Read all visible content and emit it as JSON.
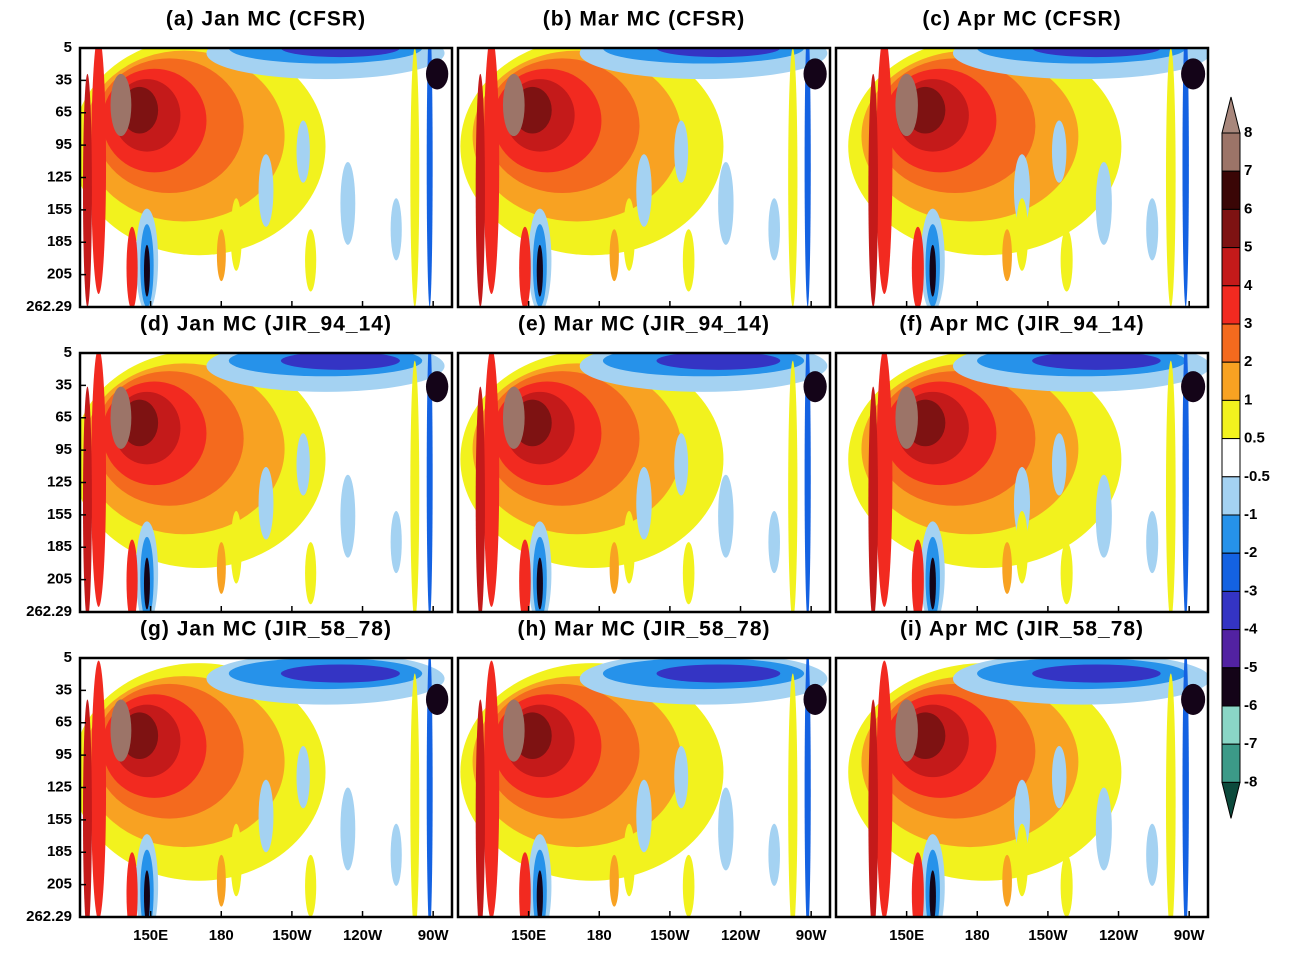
{
  "chart_data": {
    "type": "contour",
    "panels": [
      {
        "title": "(a) Jan MC (CFSR)"
      },
      {
        "title": "(b) Mar MC (CFSR)"
      },
      {
        "title": "(c) Apr MC (CFSR)"
      },
      {
        "title": "(d) Jan MC (JIR_94_14)"
      },
      {
        "title": "(e) Mar MC (JIR_94_14)"
      },
      {
        "title": "(f) Apr MC (JIR_94_14)"
      },
      {
        "title": "(g) Jan MC (JIR_58_78)"
      },
      {
        "title": "(h) Mar MC (JIR_58_78)"
      },
      {
        "title": "(i) Apr MC (JIR_58_78)"
      }
    ],
    "ylevels": [
      5,
      35,
      65,
      95,
      125,
      155,
      185,
      205,
      262.29
    ],
    "xlim": [
      120,
      278
    ],
    "xticks": [
      {
        "value": 150,
        "label": "150E"
      },
      180,
      {
        "value": 210,
        "label": "150W"
      },
      {
        "value": 240,
        "label": "120W"
      },
      {
        "value": 270,
        "label": "90W"
      }
    ],
    "colorbar": {
      "levels": [
        8,
        7,
        6,
        5,
        4,
        3,
        2,
        1,
        0.5,
        -0.5,
        -1,
        -2,
        -3,
        -4,
        -5,
        -6,
        -7,
        -8
      ],
      "colors": [
        "#a8877c",
        "#9c7468",
        "#3a0606",
        "#7e1212",
        "#c41a1a",
        "#f22a20",
        "#f46a1e",
        "#f8a222",
        "#f2f21e",
        "#ffffff",
        "#a4d2f2",
        "#2692ea",
        "#1462e2",
        "#3434c4",
        "#5222a2",
        "#140418",
        "#8ad6c6",
        "#3c9a88",
        "#0c4a3c"
      ]
    }
  }
}
